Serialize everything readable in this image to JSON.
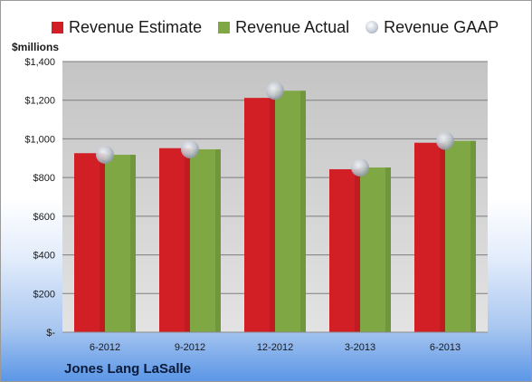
{
  "company": "Jones Lang LaSalle",
  "legend": {
    "estimate": "Revenue Estimate",
    "actual": "Revenue Actual",
    "gaap": "Revenue GAAP"
  },
  "colors": {
    "estimate": "#d21f26",
    "actual": "#7fa845",
    "gaap": "#b8bcc6"
  },
  "chart_data": {
    "type": "bar",
    "ylabel": "$millions",
    "categories": [
      "6-2012",
      "9-2012",
      "12-2012",
      "3-2013",
      "6-2013"
    ],
    "series": [
      {
        "name": "Revenue Estimate",
        "values": [
          926,
          952,
          1212,
          843,
          980
        ]
      },
      {
        "name": "Revenue Actual",
        "values": [
          918,
          946,
          1249,
          852,
          990
        ]
      },
      {
        "name": "Revenue GAAP",
        "values": [
          918,
          946,
          1249,
          852,
          990
        ]
      }
    ],
    "ylim": [
      0,
      1400
    ],
    "yticks": [
      0,
      200,
      400,
      600,
      800,
      1000,
      1200,
      1400
    ],
    "ytick_labels": [
      "$-",
      "$200",
      "$400",
      "$600",
      "$800",
      "$1,000",
      "$1,200",
      "$1,400"
    ],
    "grid": true,
    "legend_position": "top"
  }
}
